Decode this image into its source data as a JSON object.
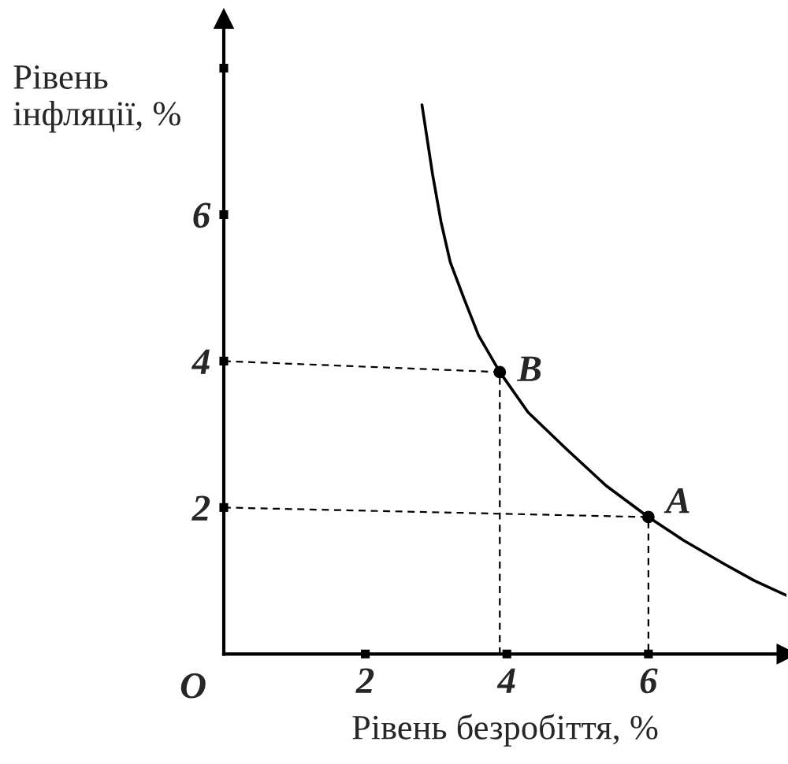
{
  "chart_data": {
    "type": "line",
    "xlabel": "Рівень безробіття, %",
    "ylabel": "Рівень\nінфляції, %",
    "xlim": [
      0,
      7.95
    ],
    "ylim": [
      0,
      8.67
    ],
    "xticks": [
      2,
      4,
      6
    ],
    "yticks": [
      2,
      4,
      6,
      {
        "value": 8,
        "label": null
      }
    ],
    "grid": false,
    "legend": false,
    "series": [
      {
        "color": "#000000",
        "line_style": "solid",
        "x": [
          2.8,
          2.95,
          3.07,
          3.2,
          3.4,
          3.6,
          3.9,
          4.3,
          4.84,
          5.4,
          6.0,
          6.5,
          7.07,
          7.5,
          7.95
        ],
        "values": [
          7.5,
          6.55,
          5.9,
          5.35,
          4.84,
          4.35,
          3.85,
          3.3,
          2.8,
          2.3,
          1.87,
          1.55,
          1.23,
          1.0,
          0.8
        ]
      },
      {
        "type": "line",
        "color": "#000000",
        "line_style": "dashed",
        "x": [
          0,
          3.9,
          3.9
        ],
        "values": [
          4.0,
          3.85,
          0
        ]
      },
      {
        "type": "line",
        "color": "#000000",
        "line_style": "dashed",
        "x": [
          0,
          6.0,
          6.0
        ],
        "values": [
          2.0,
          1.87,
          0
        ]
      },
      {
        "type": "scatter",
        "color": "#000000",
        "marker": "circle",
        "x": [
          3.9,
          6.0
        ],
        "values": [
          3.85,
          1.87
        ]
      }
    ],
    "annotations": [
      {
        "text": "B",
        "x": 3.9,
        "y": 3.85
      },
      {
        "text": "A",
        "x": 6.0,
        "y": 1.87
      },
      "O"
    ]
  }
}
